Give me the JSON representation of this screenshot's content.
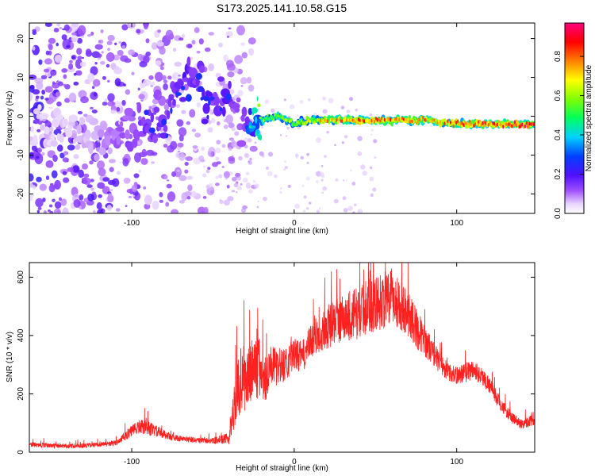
{
  "title": "S173.2025.141.10.58.G15",
  "chart_data": [
    {
      "type": "heatmap",
      "title": "S173.2025.141.10.58.G15",
      "xlabel": "Height of straight line (km)",
      "ylabel": "Frequency (Hz)",
      "xlim": [
        -163,
        148
      ],
      "ylim": [
        -25,
        24
      ],
      "xticks": [
        -100,
        0,
        100
      ],
      "xtick_labels": [
        "-100",
        "0",
        "100"
      ],
      "yticks": [
        -20,
        -10,
        0,
        10,
        20
      ],
      "ytick_labels": [
        "-20",
        "-10",
        "0",
        "10",
        "20"
      ],
      "colorbar": {
        "label": "Normalized spectral amplitude",
        "range": [
          0,
          0.97
        ],
        "ticks": [
          0.0,
          0.2,
          0.4,
          0.6,
          0.8
        ],
        "tick_labels": [
          "0.0",
          "0.2",
          "0.4",
          "0.6",
          "0.8"
        ]
      },
      "ridge": {
        "x": [
          -160,
          -140,
          -120,
          -115,
          -100,
          -90,
          -80,
          -70,
          -60,
          -55,
          -50,
          -40,
          -35,
          -30,
          -25,
          -20,
          -10,
          0,
          10,
          20,
          40,
          60,
          80,
          100,
          120,
          140,
          148
        ],
        "y": [
          -2,
          -4,
          -6,
          -6,
          -4,
          -3,
          -1,
          8,
          10,
          5,
          4,
          5,
          1,
          -3,
          -1,
          -1,
          0,
          -2,
          -1,
          -1,
          -1,
          -1,
          -1,
          -2,
          -2,
          -2,
          -2
        ],
        "amplitude": [
          0.1,
          0.1,
          0.15,
          0.2,
          0.25,
          0.3,
          0.3,
          0.35,
          0.3,
          0.35,
          0.3,
          0.35,
          0.25,
          0.3,
          0.5,
          0.6,
          0.65,
          0.65,
          0.7,
          0.8,
          0.85,
          0.85,
          0.8,
          0.85,
          0.9,
          0.95,
          0.9
        ]
      }
    },
    {
      "type": "line",
      "xlabel": "Height of straight line (km)",
      "ylabel": "SNR (10 * v/v)",
      "xlim": [
        -163,
        148
      ],
      "ylim": [
        0,
        650
      ],
      "xticks": [
        -100,
        0,
        100
      ],
      "xtick_labels": [
        "-100",
        "0",
        "100"
      ],
      "yticks": [
        0,
        200,
        400,
        600
      ],
      "ytick_labels": [
        "0",
        "200",
        "400",
        "600"
      ],
      "series": [
        {
          "color": "#ff2020",
          "x": [
            -163,
            -150,
            -140,
            -130,
            -120,
            -110,
            -105,
            -100,
            -95,
            -90,
            -85,
            -80,
            -75,
            -70,
            -60,
            -50,
            -40,
            -38,
            -35,
            -32,
            -30,
            -25,
            -20,
            -18,
            -15,
            -10,
            -5,
            0,
            5,
            10,
            15,
            20,
            25,
            30,
            35,
            40,
            45,
            50,
            55,
            60,
            65,
            70,
            75,
            80,
            85,
            90,
            95,
            100,
            105,
            110,
            115,
            120,
            125,
            130,
            135,
            140,
            148
          ],
          "y": [
            25,
            22,
            20,
            22,
            25,
            30,
            50,
            70,
            85,
            80,
            70,
            60,
            50,
            45,
            40,
            38,
            45,
            120,
            200,
            250,
            230,
            280,
            270,
            230,
            300,
            280,
            300,
            330,
            320,
            370,
            400,
            420,
            440,
            450,
            460,
            470,
            490,
            500,
            510,
            520,
            500,
            470,
            420,
            380,
            340,
            300,
            270,
            260,
            270,
            280,
            260,
            230,
            180,
            140,
            110,
            95,
            110
          ],
          "noise": [
            8,
            8,
            8,
            8,
            8,
            10,
            15,
            20,
            25,
            25,
            20,
            15,
            12,
            10,
            10,
            10,
            20,
            60,
            100,
            120,
            110,
            120,
            110,
            90,
            70,
            60,
            60,
            55,
            55,
            60,
            70,
            75,
            80,
            85,
            90,
            90,
            95,
            95,
            100,
            95,
            90,
            80,
            70,
            55,
            45,
            35,
            30,
            30,
            35,
            35,
            30,
            30,
            25,
            20,
            20,
            18,
            20
          ]
        }
      ]
    }
  ]
}
